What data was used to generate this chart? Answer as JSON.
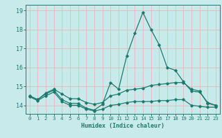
{
  "xlabel": "Humidex (Indice chaleur)",
  "background_color": "#c8eaea",
  "line_color": "#1a7a6e",
  "grid_color": "#e8b8b8",
  "x_values": [
    0,
    1,
    2,
    3,
    4,
    5,
    6,
    7,
    8,
    9,
    10,
    11,
    12,
    13,
    14,
    15,
    16,
    17,
    18,
    19,
    20,
    21,
    22,
    23
  ],
  "series1": [
    14.5,
    14.3,
    14.6,
    14.8,
    14.3,
    14.1,
    14.1,
    13.85,
    13.75,
    14.05,
    15.2,
    14.85,
    16.6,
    17.8,
    18.9,
    18.0,
    17.2,
    16.0,
    15.85,
    15.25,
    14.75,
    14.7,
    14.15,
    14.0
  ],
  "series2": [
    14.5,
    14.3,
    14.65,
    14.85,
    14.6,
    14.35,
    14.35,
    14.15,
    14.05,
    14.15,
    14.5,
    14.6,
    14.8,
    14.85,
    14.9,
    15.05,
    15.1,
    15.15,
    15.2,
    15.2,
    14.85,
    14.75,
    14.1,
    14.0
  ],
  "series3": [
    14.45,
    14.25,
    14.5,
    14.7,
    14.2,
    14.0,
    14.0,
    13.8,
    13.7,
    13.8,
    14.0,
    14.05,
    14.15,
    14.2,
    14.2,
    14.2,
    14.25,
    14.25,
    14.3,
    14.3,
    14.0,
    13.95,
    13.9,
    13.9
  ],
  "ylim": [
    13.55,
    19.3
  ],
  "yticks": [
    14,
    15,
    16,
    17,
    18,
    19
  ],
  "xticks": [
    0,
    1,
    2,
    3,
    4,
    5,
    6,
    7,
    8,
    9,
    10,
    11,
    12,
    13,
    14,
    15,
    16,
    17,
    18,
    19,
    20,
    21,
    22,
    23
  ]
}
